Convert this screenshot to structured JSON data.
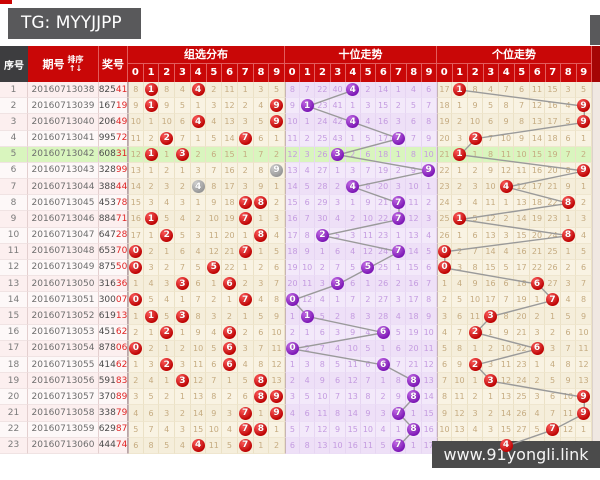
{
  "badge": {
    "text": "TG: MYYJJPP"
  },
  "watermark": {
    "text": "www.91yongli.link"
  },
  "header": {
    "seq": "序号",
    "period": "期号",
    "sort": "排序",
    "sort_arrows": "↑↓",
    "prize": "奖号",
    "sections": [
      {
        "title": "组选分布",
        "digits": [
          "0",
          "1",
          "2",
          "3",
          "4",
          "5",
          "6",
          "7",
          "8",
          "9"
        ]
      },
      {
        "title": "十位走势",
        "digits": [
          "0",
          "1",
          "2",
          "3",
          "4",
          "5",
          "6",
          "7",
          "8",
          "9"
        ]
      },
      {
        "title": "个位走势",
        "digits": [
          "0",
          "1",
          "2",
          "3",
          "4",
          "5",
          "6",
          "7",
          "8",
          "9"
        ]
      }
    ]
  },
  "colors": {
    "header_red": "#c90707",
    "seq_header_bg": "#3d3d3f",
    "badge_bg": "#59595b",
    "green_row": "#d9f5be",
    "ball_red": "#bd0303",
    "ball_purple": "#7c17b5",
    "ball_gray": "#969696",
    "trend_line": "#9a9a9a",
    "prize_red": "#e02525",
    "watermark_bg": "#4b4b4b"
  },
  "rows": [
    {
      "seq": "1",
      "period": "20160713038",
      "prize": [
        "825",
        "41"
      ],
      "zx": [
        "8",
        "*1",
        "8",
        "4",
        "*4",
        "2",
        "11",
        "1",
        "3",
        "5"
      ],
      "sw": [
        "8",
        "7",
        "22",
        "40",
        "*4",
        "2",
        "14",
        "1",
        "4",
        "6"
      ],
      "gw": [
        "17",
        "*1",
        "8",
        "4",
        "7",
        "6",
        "11",
        "15",
        "3",
        "5"
      ]
    },
    {
      "seq": "2",
      "period": "20160713039",
      "prize": [
        "167",
        "19"
      ],
      "zx": [
        "9",
        "*1",
        "9",
        "5",
        "1",
        "3",
        "12",
        "2",
        "4",
        "*9"
      ],
      "sw": [
        "9",
        "*1",
        "23",
        "41",
        "1",
        "3",
        "15",
        "2",
        "5",
        "7"
      ],
      "gw": [
        "18",
        "1",
        "9",
        "5",
        "8",
        "7",
        "12",
        "16",
        "4",
        "*9"
      ]
    },
    {
      "seq": "3",
      "period": "20160713040",
      "prize": [
        "206",
        "49"
      ],
      "zx": [
        "10",
        "1",
        "10",
        "6",
        "*4",
        "4",
        "13",
        "3",
        "5",
        "*9"
      ],
      "sw": [
        "10",
        "1",
        "24",
        "42",
        "*4",
        "4",
        "16",
        "3",
        "6",
        "8"
      ],
      "gw": [
        "19",
        "2",
        "10",
        "6",
        "9",
        "8",
        "13",
        "17",
        "5",
        "*9"
      ]
    },
    {
      "seq": "4",
      "period": "20160713041",
      "prize": [
        "995",
        "72"
      ],
      "zx": [
        "11",
        "2",
        "*2",
        "7",
        "1",
        "5",
        "14",
        "*7",
        "6",
        "1"
      ],
      "sw": [
        "11",
        "2",
        "25",
        "43",
        "1",
        "5",
        "17",
        "*7",
        "7",
        "9"
      ],
      "gw": [
        "20",
        "3",
        "*2",
        "7",
        "10",
        "9",
        "14",
        "18",
        "6",
        "1"
      ]
    },
    {
      "seq": "5",
      "period": "20160713042",
      "prize": [
        "608",
        "31"
      ],
      "highlight": true,
      "zx": [
        "12",
        "*1",
        "1",
        "*3",
        "2",
        "6",
        "15",
        "1",
        "7",
        "2"
      ],
      "sw": [
        "12",
        "3",
        "26",
        "*3",
        "2",
        "6",
        "18",
        "1",
        "8",
        "10"
      ],
      "gw": [
        "21",
        "*1",
        "1",
        "8",
        "11",
        "10",
        "15",
        "19",
        "7",
        "2"
      ]
    },
    {
      "seq": "6",
      "period": "20160713043",
      "prize": [
        "328",
        "99"
      ],
      "zx": [
        "13",
        "1",
        "2",
        "1",
        "3",
        "7",
        "16",
        "2",
        "8",
        "#9"
      ],
      "sw": [
        "13",
        "4",
        "27",
        "1",
        "3",
        "7",
        "19",
        "2",
        "9",
        "*9"
      ],
      "gw": [
        "22",
        "1",
        "2",
        "9",
        "12",
        "11",
        "16",
        "20",
        "8",
        "*9"
      ]
    },
    {
      "seq": "7",
      "period": "20160713044",
      "prize": [
        "388",
        "44"
      ],
      "zx": [
        "14",
        "2",
        "3",
        "2",
        "#4",
        "8",
        "17",
        "3",
        "9",
        "1"
      ],
      "sw": [
        "14",
        "5",
        "28",
        "2",
        "*4",
        "8",
        "20",
        "3",
        "10",
        "1"
      ],
      "gw": [
        "23",
        "2",
        "3",
        "10",
        "*4",
        "12",
        "17",
        "21",
        "9",
        "1"
      ]
    },
    {
      "seq": "8",
      "period": "20160713045",
      "prize": [
        "453",
        "78"
      ],
      "zx": [
        "15",
        "3",
        "4",
        "3",
        "1",
        "9",
        "18",
        "*7",
        "*8",
        "2"
      ],
      "sw": [
        "15",
        "6",
        "29",
        "3",
        "1",
        "9",
        "21",
        "*7",
        "11",
        "2"
      ],
      "gw": [
        "24",
        "3",
        "4",
        "11",
        "1",
        "13",
        "18",
        "22",
        "*8",
        "2"
      ]
    },
    {
      "seq": "9",
      "period": "20160713046",
      "prize": [
        "884",
        "71"
      ],
      "zx": [
        "16",
        "*1",
        "5",
        "4",
        "2",
        "10",
        "19",
        "*7",
        "1",
        "3"
      ],
      "sw": [
        "16",
        "7",
        "30",
        "4",
        "2",
        "10",
        "22",
        "*7",
        "12",
        "3"
      ],
      "gw": [
        "25",
        "*1",
        "5",
        "12",
        "2",
        "14",
        "19",
        "23",
        "1",
        "3"
      ]
    },
    {
      "seq": "10",
      "period": "20160713047",
      "prize": [
        "647",
        "28"
      ],
      "zx": [
        "17",
        "1",
        "*2",
        "5",
        "3",
        "11",
        "20",
        "1",
        "*8",
        "4"
      ],
      "sw": [
        "17",
        "8",
        "*2",
        "5",
        "3",
        "11",
        "23",
        "1",
        "13",
        "4"
      ],
      "gw": [
        "26",
        "1",
        "6",
        "13",
        "3",
        "15",
        "20",
        "24",
        "*8",
        "4"
      ]
    },
    {
      "seq": "11",
      "period": "20160713048",
      "prize": [
        "653",
        "70"
      ],
      "zx": [
        "*0",
        "2",
        "1",
        "6",
        "4",
        "12",
        "21",
        "*7",
        "1",
        "5"
      ],
      "sw": [
        "18",
        "9",
        "1",
        "6",
        "4",
        "12",
        "24",
        "*7",
        "14",
        "5"
      ],
      "gw": [
        "*0",
        "2",
        "7",
        "14",
        "4",
        "16",
        "21",
        "25",
        "1",
        "5"
      ]
    },
    {
      "seq": "12",
      "period": "20160713049",
      "prize": [
        "875",
        "50"
      ],
      "zx": [
        "*0",
        "3",
        "2",
        "7",
        "5",
        "*5",
        "22",
        "1",
        "2",
        "6"
      ],
      "sw": [
        "19",
        "10",
        "2",
        "7",
        "5",
        "*5",
        "25",
        "1",
        "15",
        "6"
      ],
      "gw": [
        "*0",
        "3",
        "8",
        "15",
        "5",
        "17",
        "22",
        "26",
        "2",
        "6"
      ]
    },
    {
      "seq": "13",
      "period": "20160713050",
      "prize": [
        "316",
        "36"
      ],
      "zx": [
        "1",
        "4",
        "3",
        "*3",
        "6",
        "1",
        "*6",
        "2",
        "3",
        "7"
      ],
      "sw": [
        "20",
        "11",
        "3",
        "*3",
        "6",
        "1",
        "26",
        "2",
        "16",
        "7"
      ],
      "gw": [
        "1",
        "4",
        "9",
        "16",
        "6",
        "18",
        "*6",
        "27",
        "3",
        "7"
      ]
    },
    {
      "seq": "14",
      "period": "20160713051",
      "prize": [
        "300",
        "07"
      ],
      "zx": [
        "*0",
        "5",
        "4",
        "1",
        "7",
        "2",
        "1",
        "*7",
        "4",
        "8"
      ],
      "sw": [
        "*0",
        "12",
        "4",
        "1",
        "7",
        "2",
        "27",
        "3",
        "17",
        "8"
      ],
      "gw": [
        "2",
        "5",
        "10",
        "17",
        "7",
        "19",
        "1",
        "*7",
        "4",
        "8"
      ]
    },
    {
      "seq": "15",
      "period": "20160713052",
      "prize": [
        "619",
        "13"
      ],
      "zx": [
        "1",
        "*1",
        "5",
        "*3",
        "8",
        "3",
        "2",
        "1",
        "5",
        "9"
      ],
      "sw": [
        "1",
        "*1",
        "5",
        "2",
        "8",
        "3",
        "28",
        "4",
        "18",
        "9"
      ],
      "gw": [
        "3",
        "6",
        "11",
        "*3",
        "8",
        "20",
        "2",
        "1",
        "5",
        "9"
      ]
    },
    {
      "seq": "16",
      "period": "20160713053",
      "prize": [
        "451",
        "62"
      ],
      "zx": [
        "2",
        "1",
        "*2",
        "1",
        "9",
        "4",
        "*6",
        "2",
        "6",
        "10"
      ],
      "sw": [
        "2",
        "1",
        "6",
        "3",
        "9",
        "4",
        "*6",
        "5",
        "19",
        "10"
      ],
      "gw": [
        "4",
        "7",
        "*2",
        "1",
        "9",
        "21",
        "3",
        "2",
        "6",
        "10"
      ]
    },
    {
      "seq": "17",
      "period": "20160713054",
      "prize": [
        "878",
        "06"
      ],
      "zx": [
        "*0",
        "2",
        "1",
        "2",
        "10",
        "5",
        "*6",
        "3",
        "7",
        "11"
      ],
      "sw": [
        "*0",
        "2",
        "7",
        "4",
        "10",
        "5",
        "1",
        "6",
        "20",
        "11"
      ],
      "gw": [
        "5",
        "8",
        "1",
        "2",
        "10",
        "22",
        "*6",
        "3",
        "7",
        "11"
      ]
    },
    {
      "seq": "18",
      "period": "20160713055",
      "prize": [
        "414",
        "62"
      ],
      "zx": [
        "1",
        "3",
        "*2",
        "3",
        "11",
        "6",
        "*6",
        "4",
        "8",
        "12"
      ],
      "sw": [
        "1",
        "3",
        "8",
        "5",
        "11",
        "6",
        "*6",
        "7",
        "21",
        "12"
      ],
      "gw": [
        "6",
        "9",
        "*2",
        "3",
        "11",
        "23",
        "1",
        "4",
        "8",
        "12"
      ]
    },
    {
      "seq": "19",
      "period": "20160713056",
      "prize": [
        "591",
        "83"
      ],
      "zx": [
        "2",
        "4",
        "1",
        "*3",
        "12",
        "7",
        "1",
        "5",
        "*8",
        "13"
      ],
      "sw": [
        "2",
        "4",
        "9",
        "6",
        "12",
        "7",
        "1",
        "8",
        "*8",
        "13"
      ],
      "gw": [
        "7",
        "10",
        "1",
        "*3",
        "12",
        "24",
        "2",
        "5",
        "9",
        "13"
      ]
    },
    {
      "seq": "20",
      "period": "20160713057",
      "prize": [
        "370",
        "89"
      ],
      "zx": [
        "3",
        "5",
        "2",
        "1",
        "13",
        "8",
        "2",
        "6",
        "*8",
        "*9"
      ],
      "sw": [
        "3",
        "5",
        "10",
        "7",
        "13",
        "8",
        "2",
        "9",
        "*8",
        "14"
      ],
      "gw": [
        "8",
        "11",
        "2",
        "1",
        "13",
        "25",
        "3",
        "6",
        "10",
        "*9"
      ]
    },
    {
      "seq": "21",
      "period": "20160713058",
      "prize": [
        "338",
        "79"
      ],
      "zx": [
        "4",
        "6",
        "3",
        "2",
        "14",
        "9",
        "3",
        "*7",
        "1",
        "*9"
      ],
      "sw": [
        "4",
        "6",
        "11",
        "8",
        "14",
        "9",
        "3",
        "*7",
        "1",
        "15"
      ],
      "gw": [
        "9",
        "12",
        "3",
        "2",
        "14",
        "26",
        "4",
        "7",
        "11",
        "*9"
      ]
    },
    {
      "seq": "22",
      "period": "20160713059",
      "prize": [
        "629",
        "87"
      ],
      "zx": [
        "5",
        "7",
        "4",
        "3",
        "15",
        "10",
        "4",
        "*7",
        "*8",
        "1"
      ],
      "sw": [
        "5",
        "7",
        "12",
        "9",
        "15",
        "10",
        "4",
        "1",
        "*8",
        "16"
      ],
      "gw": [
        "10",
        "13",
        "4",
        "3",
        "15",
        "27",
        "5",
        "*7",
        "12",
        "1"
      ]
    },
    {
      "seq": "23",
      "period": "20160713060",
      "prize": [
        "444",
        "74"
      ],
      "zx": [
        "6",
        "8",
        "5",
        "4",
        "*4",
        "11",
        "5",
        "*7",
        "1",
        "2"
      ],
      "sw": [
        "6",
        "8",
        "13",
        "10",
        "16",
        "11",
        "5",
        "*7",
        "1",
        "17"
      ],
      "gw": [
        "11",
        "14",
        "5",
        "4",
        "*4",
        "28",
        "6",
        "1",
        "13",
        "2"
      ]
    }
  ]
}
